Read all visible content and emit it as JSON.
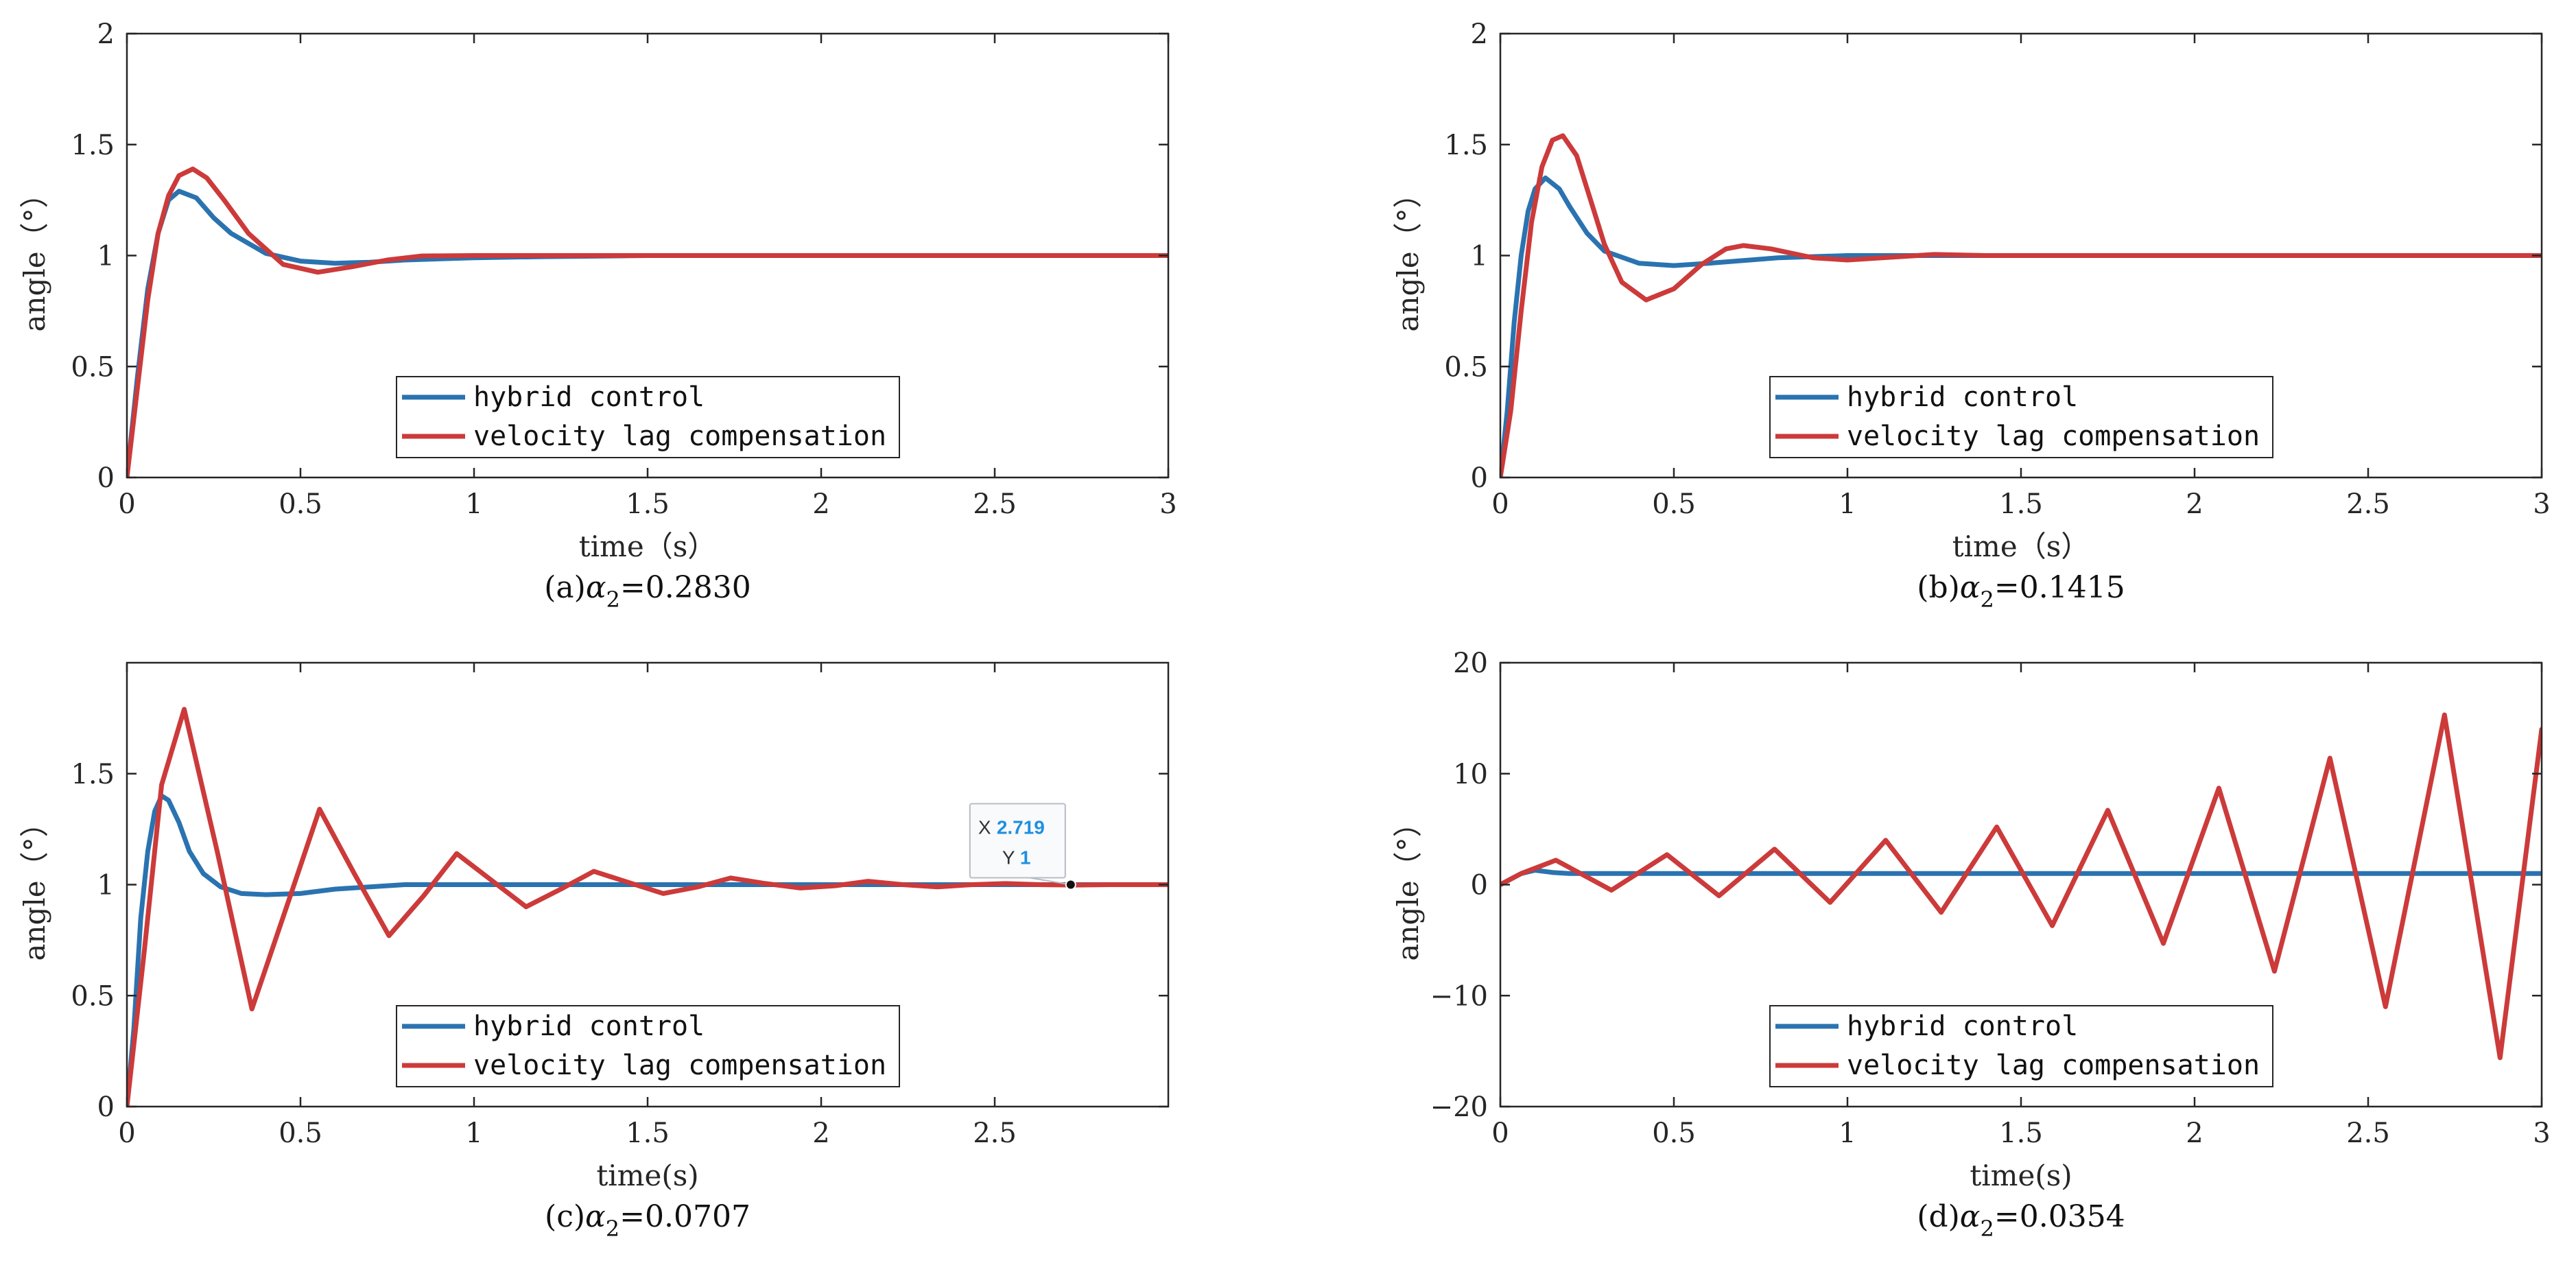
{
  "colors": {
    "hybrid": "#2a73b0",
    "velocity": "#cc3a3a",
    "axis": "#262626",
    "datatip_value": "#1e90e0"
  },
  "legend": {
    "hybrid_label": "hybrid control",
    "velocity_label": "velocity lag compensation"
  },
  "chart_data": [
    {
      "id": "a",
      "type": "line",
      "caption": {
        "prefix": "(a)",
        "alpha": "α",
        "subscript": "2",
        "value": "=0.2830"
      },
      "xlabel": "time（s）",
      "ylabel": "angle（°）",
      "xlim": [
        0,
        3
      ],
      "ylim": [
        0,
        2
      ],
      "xticks": [
        0,
        0.5,
        1,
        1.5,
        2,
        2.5,
        3
      ],
      "xtick_labels": [
        "0",
        "0.5",
        "1",
        "1.5",
        "2",
        "2.5",
        "3"
      ],
      "yticks": [
        0,
        0.5,
        1,
        1.5,
        2
      ],
      "ytick_labels": [
        "0",
        "0.5",
        "1",
        "1.5",
        "2"
      ],
      "grid": false,
      "legend_position": "bottom-center",
      "series": [
        {
          "name": "hybrid control",
          "x": [
            0,
            0.03,
            0.06,
            0.09,
            0.12,
            0.15,
            0.2,
            0.25,
            0.3,
            0.4,
            0.5,
            0.6,
            0.7,
            0.8,
            1.0,
            1.2,
            1.5,
            2.0,
            2.5,
            3.0
          ],
          "values": [
            0,
            0.45,
            0.85,
            1.1,
            1.25,
            1.29,
            1.26,
            1.17,
            1.1,
            1.01,
            0.975,
            0.965,
            0.97,
            0.98,
            0.99,
            0.995,
            1.0,
            1.0,
            1.0,
            1.0
          ]
        },
        {
          "name": "velocity lag compensation",
          "x": [
            0,
            0.03,
            0.06,
            0.09,
            0.12,
            0.15,
            0.19,
            0.23,
            0.28,
            0.35,
            0.45,
            0.55,
            0.65,
            0.75,
            0.85,
            1.0,
            1.2,
            1.5,
            2.0,
            2.5,
            3.0
          ],
          "values": [
            0,
            0.4,
            0.8,
            1.1,
            1.27,
            1.36,
            1.39,
            1.35,
            1.25,
            1.1,
            0.96,
            0.925,
            0.95,
            0.98,
            0.998,
            1.0,
            1.0,
            1.0,
            1.0,
            1.0,
            1.0
          ]
        }
      ]
    },
    {
      "id": "b",
      "type": "line",
      "caption": {
        "prefix": "(b)",
        "alpha": "α",
        "subscript": "2",
        "value": "=0.1415"
      },
      "xlabel": "time（s）",
      "ylabel": "angle（°）",
      "xlim": [
        0,
        3
      ],
      "ylim": [
        0,
        2
      ],
      "xticks": [
        0,
        0.5,
        1,
        1.5,
        2,
        2.5,
        3
      ],
      "xtick_labels": [
        "0",
        "0.5",
        "1",
        "1.5",
        "2",
        "2.5",
        "3"
      ],
      "yticks": [
        0,
        0.5,
        1,
        1.5,
        2
      ],
      "ytick_labels": [
        "0",
        "0.5",
        "1",
        "1.5",
        "2"
      ],
      "grid": false,
      "legend_position": "bottom-center",
      "series": [
        {
          "name": "hybrid control",
          "x": [
            0,
            0.02,
            0.04,
            0.06,
            0.08,
            0.1,
            0.13,
            0.17,
            0.2,
            0.25,
            0.3,
            0.4,
            0.5,
            0.6,
            0.8,
            1.0,
            1.2,
            1.5,
            2.0,
            3.0
          ],
          "values": [
            0,
            0.3,
            0.7,
            1.0,
            1.2,
            1.3,
            1.35,
            1.3,
            1.22,
            1.1,
            1.02,
            0.965,
            0.955,
            0.965,
            0.99,
            1.0,
            1.0,
            1.0,
            1.0,
            1.0
          ]
        },
        {
          "name": "velocity lag compensation",
          "x": [
            0,
            0.03,
            0.06,
            0.09,
            0.12,
            0.15,
            0.18,
            0.22,
            0.26,
            0.3,
            0.35,
            0.42,
            0.5,
            0.58,
            0.65,
            0.7,
            0.78,
            0.9,
            1.0,
            1.1,
            1.25,
            1.4,
            1.6,
            2.0,
            3.0
          ],
          "values": [
            0,
            0.3,
            0.75,
            1.15,
            1.4,
            1.52,
            1.54,
            1.45,
            1.25,
            1.05,
            0.88,
            0.8,
            0.85,
            0.96,
            1.03,
            1.045,
            1.03,
            0.99,
            0.98,
            0.99,
            1.005,
            1.0,
            1.0,
            1.0,
            1.0
          ]
        }
      ]
    },
    {
      "id": "c",
      "type": "line",
      "caption": {
        "prefix": "(c)",
        "alpha": "α",
        "subscript": "2",
        "value": "=0.0707"
      },
      "xlabel": "time(s)",
      "ylabel": "angle（°）",
      "xlim": [
        0,
        3
      ],
      "ylim": [
        0,
        2
      ],
      "xticks": [
        0,
        0.5,
        1,
        1.5,
        2,
        2.5
      ],
      "xtick_labels": [
        "0",
        "0.5",
        "1",
        "1.5",
        "2",
        "2.5"
      ],
      "yticks": [
        0,
        0.5,
        1,
        1.5
      ],
      "ytick_labels": [
        "0",
        "0.5",
        "1",
        "1.5"
      ],
      "grid": false,
      "legend_position": "bottom-center",
      "datatip": {
        "x": 2.719,
        "y": 1,
        "x_label": "X",
        "y_label": "Y",
        "x_text": "2.719",
        "y_text": "1"
      },
      "series": [
        {
          "name": "hybrid control",
          "x": [
            0,
            0.02,
            0.04,
            0.06,
            0.08,
            0.1,
            0.12,
            0.15,
            0.18,
            0.22,
            0.27,
            0.33,
            0.4,
            0.5,
            0.6,
            0.8,
            1.0,
            1.5,
            2.0,
            2.5,
            3.0
          ],
          "values": [
            0,
            0.35,
            0.85,
            1.15,
            1.33,
            1.4,
            1.38,
            1.28,
            1.15,
            1.05,
            0.99,
            0.96,
            0.955,
            0.96,
            0.98,
            1.0,
            1.0,
            1.0,
            1.0,
            1.0,
            1.0
          ]
        },
        {
          "name": "velocity lag compensation",
          "x": [
            0,
            0.05,
            0.1,
            0.165,
            0.26,
            0.36,
            0.46,
            0.555,
            0.655,
            0.755,
            0.855,
            0.95,
            1.05,
            1.15,
            1.25,
            1.345,
            1.445,
            1.545,
            1.645,
            1.74,
            1.84,
            1.94,
            2.04,
            2.135,
            2.235,
            2.335,
            2.435,
            2.53,
            2.63,
            2.73,
            2.83,
            2.93,
            3.0
          ],
          "values": [
            0,
            0.7,
            1.45,
            1.79,
            1.15,
            0.44,
            0.9,
            1.34,
            1.05,
            0.77,
            0.95,
            1.14,
            1.02,
            0.9,
            0.98,
            1.06,
            1.01,
            0.96,
            0.99,
            1.03,
            1.005,
            0.985,
            0.995,
            1.015,
            1.0,
            0.99,
            1.0,
            1.005,
            1.0,
            0.998,
            1.0,
            1.0,
            1.0
          ]
        }
      ]
    },
    {
      "id": "d",
      "type": "line",
      "caption": {
        "prefix": "(d)",
        "alpha": "α",
        "subscript": "2",
        "value": "=0.0354"
      },
      "xlabel": "time(s)",
      "ylabel": "angle（°）",
      "xlim": [
        0,
        3
      ],
      "ylim": [
        -20,
        20
      ],
      "xticks": [
        0,
        0.5,
        1,
        1.5,
        2,
        2.5,
        3
      ],
      "xtick_labels": [
        "0",
        "0.5",
        "1",
        "1.5",
        "2",
        "2.5",
        "3"
      ],
      "yticks": [
        -20,
        -10,
        0,
        10,
        20
      ],
      "ytick_labels": [
        "−20",
        "−10",
        "0",
        "10",
        "20"
      ],
      "grid": false,
      "legend_position": "bottom-center",
      "series": [
        {
          "name": "hybrid control",
          "x": [
            0,
            0.03,
            0.06,
            0.1,
            0.15,
            0.2,
            0.3,
            0.5,
            1.0,
            1.5,
            2.0,
            2.5,
            3.0
          ],
          "values": [
            0,
            0.5,
            1.0,
            1.3,
            1.1,
            1.0,
            1.0,
            1.0,
            1.0,
            1.0,
            1.0,
            1.0,
            1.0
          ]
        },
        {
          "name": "velocity lag compensation",
          "x": [
            0,
            0.06,
            0.16,
            0.32,
            0.48,
            0.63,
            0.79,
            0.95,
            1.11,
            1.27,
            1.43,
            1.59,
            1.75,
            1.91,
            2.07,
            2.23,
            2.39,
            2.55,
            2.72,
            2.88,
            3.0
          ],
          "values": [
            0,
            1.0,
            2.2,
            -0.5,
            2.7,
            -1.0,
            3.2,
            -1.6,
            4.0,
            -2.5,
            5.2,
            -3.7,
            6.7,
            -5.3,
            8.7,
            -7.8,
            11.4,
            -11.0,
            15.3,
            -15.6,
            14.0
          ]
        }
      ]
    }
  ]
}
